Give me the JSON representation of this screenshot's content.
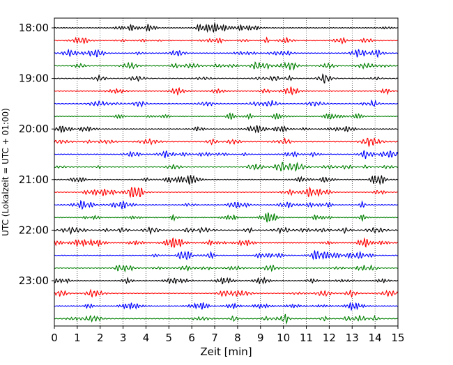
{
  "chart_data": {
    "type": "line",
    "title": "",
    "xlabel": "Zeit  [min]",
    "ylabel": "UTC (Lokalzeit = UTC + 01:00)",
    "xlim": [
      0,
      15
    ],
    "x_ticks": [
      "0",
      "1",
      "2",
      "3",
      "4",
      "5",
      "6",
      "7",
      "8",
      "9",
      "10",
      "11",
      "12",
      "13",
      "14",
      "15"
    ],
    "y_ticks": [
      "18:00",
      "19:00",
      "20:00",
      "21:00",
      "22:00",
      "23:00"
    ],
    "grid": "vertical dotted",
    "trace_start": "18:00",
    "trace_interval_min": 15,
    "trace_count": 24,
    "trace_colors": [
      "#000000",
      "#ff0000",
      "#0000ff",
      "#008000"
    ]
  }
}
